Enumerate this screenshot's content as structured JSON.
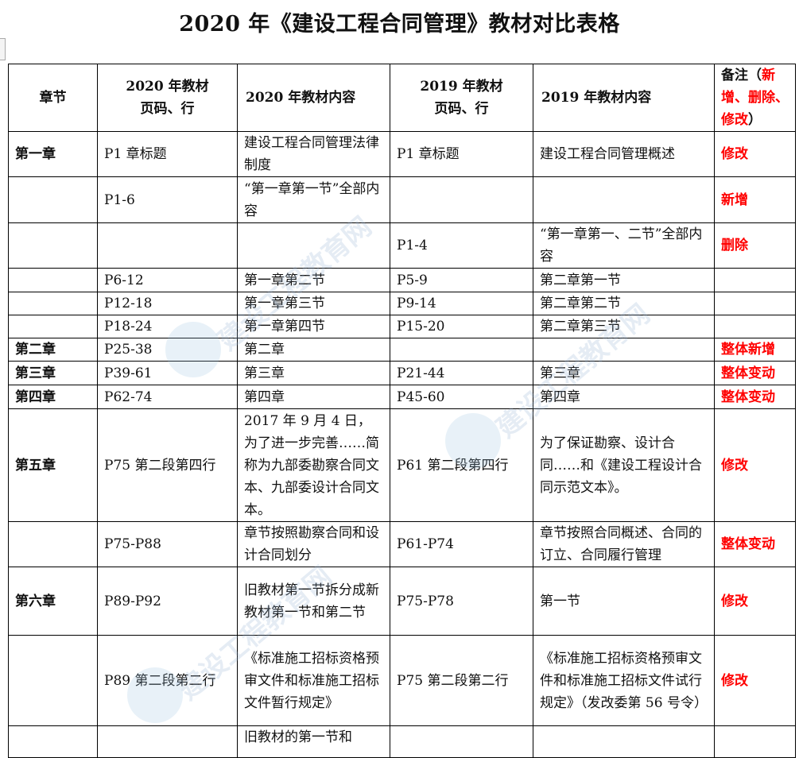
{
  "title": "2020 年《建设工程合同管理》教材对比表格",
  "header": {
    "chapter": "章节",
    "page2020_a": "2020 年教材",
    "page2020_b": "页码、行",
    "content2020": "2020 年教材内容",
    "page2019_a": "2019 年教材",
    "page2019_b": "页码、行",
    "content2019": "2019 年教材内容",
    "note_a": "备注（",
    "note_b": "新增、删除、修改",
    "note_c": "）"
  },
  "rows": [
    {
      "chapter": "第一章",
      "p2020": "P1  章标题",
      "c2020": "建设工程合同管理法律制度",
      "p2019": "P1  章标题",
      "c2019": "建设工程合同管理概述",
      "note": "修改"
    },
    {
      "chapter": "",
      "p2020": "P1-6",
      "c2020": "“第一章第一节”全部内容",
      "p2019": "",
      "c2019": "",
      "note": "新增"
    },
    {
      "chapter": "",
      "p2020": "",
      "c2020": "",
      "p2019": "P1-4",
      "c2019": "“第一章第一、二节”全部内容",
      "note": "删除"
    },
    {
      "chapter": "",
      "p2020": "P6-12",
      "c2020": "第一章第二节",
      "p2019": "P5-9",
      "c2019": "第二章第一节",
      "note": ""
    },
    {
      "chapter": "",
      "p2020": "P12-18",
      "c2020": "第一章第三节",
      "p2019": "P9-14",
      "c2019": "第二章第二节",
      "note": ""
    },
    {
      "chapter": "",
      "p2020": "P18-24",
      "c2020": "第一章第四节",
      "p2019": "P15-20",
      "c2019": "第二章第三节",
      "note": ""
    },
    {
      "chapter": "第二章",
      "p2020": "P25-38",
      "c2020": "第二章",
      "p2019": "",
      "c2019": "",
      "note": "整体新增"
    },
    {
      "chapter": "第三章",
      "p2020": "P39-61",
      "c2020": "第三章",
      "p2019": "P21-44",
      "c2019": "第三章",
      "note": "整体变动"
    },
    {
      "chapter": "第四章",
      "p2020": "P62-74",
      "c2020": "第四章",
      "p2019": "P45-60",
      "c2019": "第四章",
      "note": "整体变动"
    },
    {
      "chapter": "第五章",
      "p2020": "P75 第二段第四行",
      "c2020": "2017 年 9 月 4 日，为了进一步完善……简称为九部委勘察合同文本、九部委设计合同文本。",
      "p2019": "P61 第二段第四行",
      "c2019": "为了保证勘察、设计合同……和《建设工程设计合同示范文本》。",
      "note": "修改"
    },
    {
      "chapter": "",
      "p2020": "P75-P88",
      "c2020": "章节按照勘察合同和设计合同划分",
      "p2019": "P61-P74",
      "c2019": "章节按照合同概述、合同的订立、合同履行管理",
      "note": "整体变动"
    },
    {
      "chapter": "第六章",
      "p2020": "P89-P92",
      "c2020": "旧教材第一节拆分成新教材第一节和第二节",
      "p2019": "P75-P78",
      "c2019": "第一节",
      "note": "修改"
    },
    {
      "chapter": "",
      "p2020": "P89 第二段第二行",
      "c2020": "《标准施工招标资格预审文件和标准施工招标文件暂行规定》",
      "p2019": "P75 第二段第二行",
      "c2019": "《标准施工招标资格预审文件和标准施工招标文件试行规定》（发改委第 56 号令）",
      "note": "修改"
    },
    {
      "chapter": "",
      "p2020": "",
      "c2020": "旧教材的第一节和",
      "p2019": "",
      "c2019": "",
      "note": ""
    }
  ]
}
